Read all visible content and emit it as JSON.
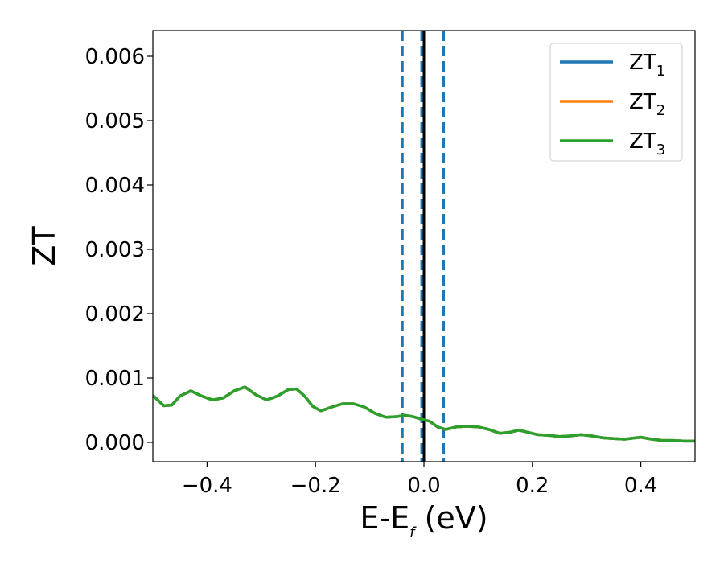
{
  "chart_data": {
    "type": "line",
    "xlabel_main": "E-E",
    "xlabel_sub": "f",
    "xlabel_unit": " (eV)",
    "ylabel": "ZT",
    "xlim": [
      -0.5,
      0.5
    ],
    "ylim": [
      -0.0003,
      0.0064
    ],
    "xticks": [
      -0.4,
      -0.2,
      0.0,
      0.2,
      0.4
    ],
    "xtick_labels": [
      "−0.4",
      "−0.2",
      "0.0",
      "0.2",
      "0.4"
    ],
    "yticks": [
      0.0,
      0.001,
      0.002,
      0.003,
      0.004,
      0.005,
      0.006
    ],
    "ytick_labels": [
      "0.000",
      "0.001",
      "0.002",
      "0.003",
      "0.004",
      "0.005",
      "0.006"
    ],
    "grid": false,
    "legend_position": "top-right",
    "vlines": [
      {
        "x": -0.04,
        "style": "dashed",
        "color": "#1f77b4"
      },
      {
        "x": -0.004,
        "style": "dashed",
        "color": "#1f77b4"
      },
      {
        "x": 0.0,
        "style": "solid",
        "color": "#000000"
      },
      {
        "x": 0.036,
        "style": "dashed",
        "color": "#1f77b4"
      }
    ],
    "x": [
      -0.5,
      -0.48,
      -0.465,
      -0.45,
      -0.43,
      -0.41,
      -0.39,
      -0.37,
      -0.35,
      -0.33,
      -0.31,
      -0.29,
      -0.27,
      -0.25,
      -0.235,
      -0.22,
      -0.205,
      -0.19,
      -0.17,
      -0.15,
      -0.13,
      -0.11,
      -0.09,
      -0.07,
      -0.05,
      -0.035,
      -0.02,
      -0.005,
      0.01,
      0.025,
      0.04,
      0.06,
      0.08,
      0.1,
      0.12,
      0.14,
      0.16,
      0.175,
      0.19,
      0.21,
      0.23,
      0.25,
      0.27,
      0.29,
      0.31,
      0.33,
      0.35,
      0.37,
      0.39,
      0.4,
      0.42,
      0.44,
      0.46,
      0.48,
      0.5
    ],
    "series": [
      {
        "name_main": "ZT",
        "name_sub": "1",
        "color": "#1f77b4",
        "values": [
          0.00073,
          0.00057,
          0.00058,
          0.00072,
          0.0008,
          0.00072,
          0.00066,
          0.00069,
          0.0008,
          0.00086,
          0.00074,
          0.00066,
          0.00072,
          0.00082,
          0.00083,
          0.00072,
          0.00056,
          0.00049,
          0.00055,
          0.0006,
          0.0006,
          0.00055,
          0.00045,
          0.00039,
          0.0004,
          0.00042,
          0.0004,
          0.00036,
          0.00033,
          0.00024,
          0.0002,
          0.00024,
          0.00025,
          0.00024,
          0.0002,
          0.00014,
          0.00016,
          0.00019,
          0.00016,
          0.00012,
          0.00011,
          9e-05,
          0.0001,
          0.00012,
          0.0001,
          7e-05,
          6e-05,
          5e-05,
          7e-05,
          8e-05,
          5e-05,
          3e-05,
          3e-05,
          2e-05,
          2e-05
        ]
      },
      {
        "name_main": "ZT",
        "name_sub": "2",
        "color": "#ff7f0e",
        "values": [
          0.00073,
          0.00057,
          0.00058,
          0.00072,
          0.0008,
          0.00072,
          0.00066,
          0.00069,
          0.0008,
          0.00086,
          0.00074,
          0.00066,
          0.00072,
          0.00082,
          0.00083,
          0.00072,
          0.00056,
          0.00049,
          0.00055,
          0.0006,
          0.0006,
          0.00055,
          0.00045,
          0.00039,
          0.0004,
          0.00042,
          0.0004,
          0.00036,
          0.00033,
          0.00024,
          0.0002,
          0.00024,
          0.00025,
          0.00024,
          0.0002,
          0.00014,
          0.00016,
          0.00019,
          0.00016,
          0.00012,
          0.00011,
          9e-05,
          0.0001,
          0.00012,
          0.0001,
          7e-05,
          6e-05,
          5e-05,
          7e-05,
          8e-05,
          5e-05,
          3e-05,
          3e-05,
          2e-05,
          2e-05
        ]
      },
      {
        "name_main": "ZT",
        "name_sub": "3",
        "color": "#2ca02c",
        "values": [
          0.00073,
          0.00057,
          0.00058,
          0.00072,
          0.0008,
          0.00072,
          0.00066,
          0.00069,
          0.0008,
          0.00086,
          0.00074,
          0.00066,
          0.00072,
          0.00082,
          0.00083,
          0.00072,
          0.00056,
          0.00049,
          0.00055,
          0.0006,
          0.0006,
          0.00055,
          0.00045,
          0.00039,
          0.0004,
          0.00042,
          0.0004,
          0.00036,
          0.00033,
          0.00024,
          0.0002,
          0.00024,
          0.00025,
          0.00024,
          0.0002,
          0.00014,
          0.00016,
          0.00019,
          0.00016,
          0.00012,
          0.00011,
          9e-05,
          0.0001,
          0.00012,
          0.0001,
          7e-05,
          6e-05,
          5e-05,
          7e-05,
          8e-05,
          5e-05,
          3e-05,
          3e-05,
          2e-05,
          2e-05
        ]
      }
    ]
  }
}
